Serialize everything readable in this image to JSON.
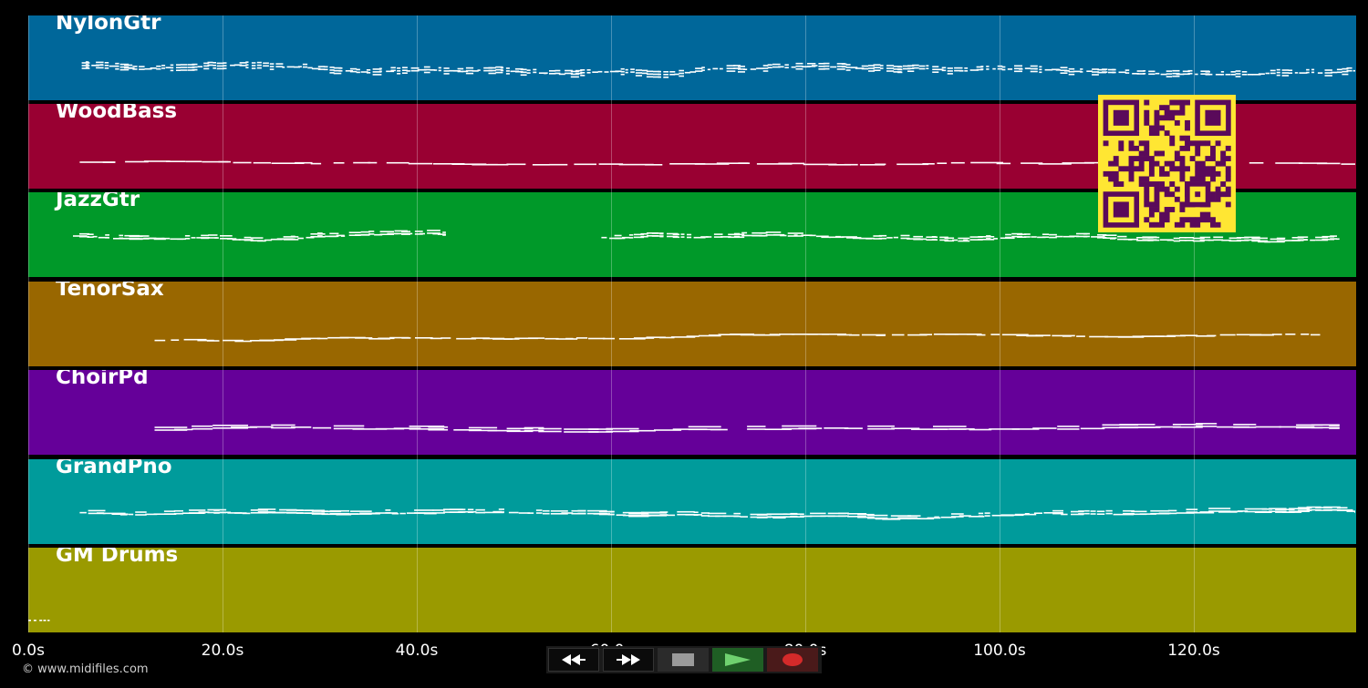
{
  "tracks": [
    {
      "name": "NylonGtr",
      "color": "#00679a"
    },
    {
      "name": "WoodBass",
      "color": "#990032"
    },
    {
      "name": "JazzGtr",
      "color": "#009929"
    },
    {
      "name": "TenorSax",
      "color": "#996700"
    },
    {
      "name": "ChoirPd",
      "color": "#650099"
    },
    {
      "name": "GrandPno",
      "color": "#009b9b"
    },
    {
      "name": "GM Drums",
      "color": "#9a9a00"
    }
  ],
  "time_axis": {
    "ticks": [
      "0.0s",
      "20.0s",
      "40.0s",
      "60.0s",
      "80.0s",
      "100.0s",
      "120.0s"
    ],
    "max_seconds": 136.8
  },
  "copyright": "© www.midifiles.com",
  "controls": {
    "rewind": "rewind-icon",
    "fast_forward": "fast-forward-icon",
    "stop": "stop-icon",
    "play": "play-icon",
    "record": "record-icon"
  },
  "qr_code": {
    "colors": {
      "dark": "#5a0a5a",
      "light": "#ffe633"
    }
  }
}
